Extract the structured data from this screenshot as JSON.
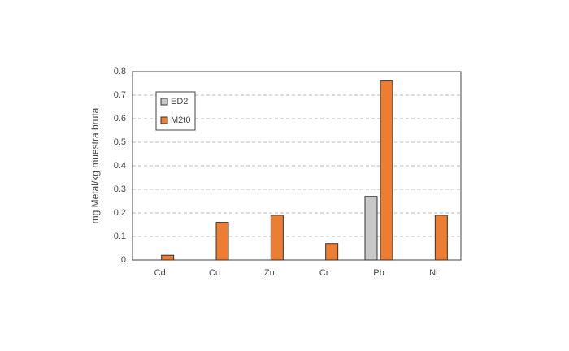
{
  "chart_data": {
    "type": "bar",
    "y_label": "mg Metal/kg muestra bruta",
    "categories": [
      "Cd",
      "Cu",
      "Zn",
      "Cr",
      "Pb",
      "Ni"
    ],
    "series": [
      {
        "name": "ED2",
        "color": "#c8c8c8",
        "values": [
          null,
          null,
          null,
          null,
          0.27,
          null
        ]
      },
      {
        "name": "M2t0",
        "color": "#ed7d31",
        "values": [
          0.02,
          0.16,
          0.19,
          0.07,
          0.76,
          0.19
        ]
      }
    ],
    "ylim": [
      0,
      0.8
    ],
    "yticks": [
      0,
      0.1,
      0.2,
      0.3,
      0.4,
      0.5,
      0.6,
      0.7,
      0.8
    ],
    "grid": true,
    "legend": "top-left"
  }
}
